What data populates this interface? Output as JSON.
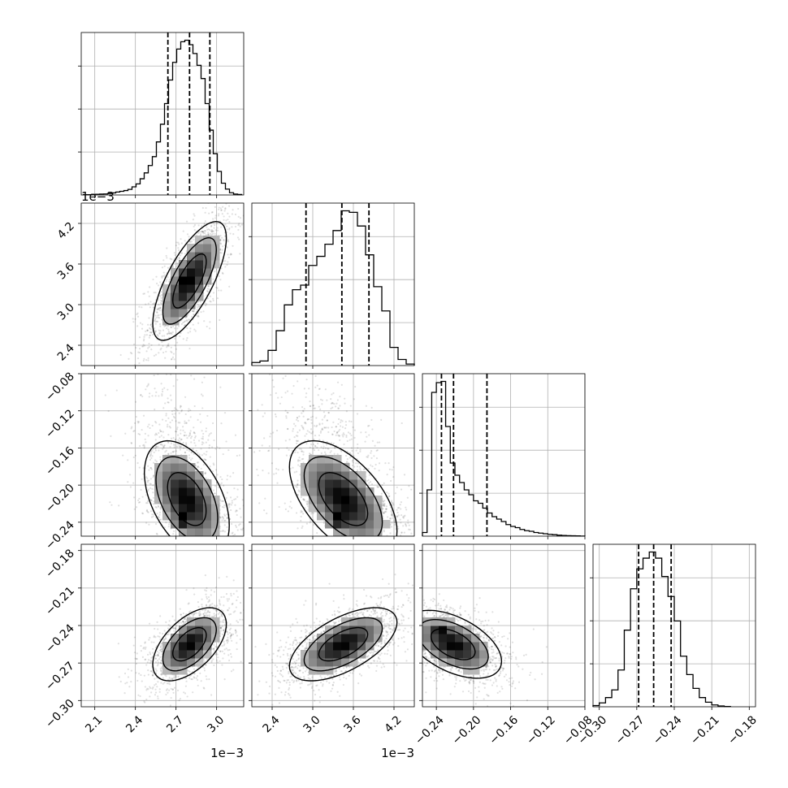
{
  "chart_data": {
    "type": "corner",
    "variables": [
      {
        "range": [
          2.0,
          3.2
        ],
        "ticks": [
          2.1,
          2.4,
          2.7,
          3.0
        ],
        "tick_labels": [
          "2.1",
          "2.4",
          "2.7",
          "3.0"
        ],
        "offset_label": "1e−3"
      },
      {
        "range": [
          2.1,
          4.5
        ],
        "ticks": [
          2.4,
          3.0,
          3.6,
          4.2
        ],
        "tick_labels": [
          "2.4",
          "3.0",
          "3.6",
          "4.2"
        ],
        "offset_label": "1e−3"
      },
      {
        "range": [
          -0.255,
          -0.08
        ],
        "ticks": [
          -0.24,
          -0.2,
          -0.16,
          -0.12,
          -0.08
        ],
        "tick_labels": [
          "−0.24",
          "−0.20",
          "−0.16",
          "−0.12",
          "−0.08"
        ],
        "offset_label": ""
      },
      {
        "range": [
          -0.305,
          -0.175
        ],
        "ticks": [
          -0.3,
          -0.27,
          -0.24,
          -0.21,
          -0.18
        ],
        "tick_labels": [
          "−0.30",
          "−0.27",
          "−0.24",
          "−0.21",
          "−0.18"
        ],
        "offset_label": ""
      }
    ],
    "histograms": [
      {
        "bins": [
          2.03,
          2.06,
          2.09,
          2.12,
          2.15,
          2.18,
          2.21,
          2.24,
          2.27,
          2.3,
          2.33,
          2.36,
          2.39,
          2.42,
          2.45,
          2.48,
          2.51,
          2.54,
          2.57,
          2.6,
          2.63,
          2.66,
          2.69,
          2.72,
          2.75,
          2.78,
          2.81,
          2.84,
          2.87,
          2.9,
          2.93,
          2.96,
          2.99,
          3.02,
          3.05,
          3.08,
          3.11,
          3.14,
          3.17
        ],
        "counts": [
          2,
          2,
          4,
          5,
          6,
          7,
          10,
          14,
          20,
          25,
          30,
          38,
          55,
          75,
          110,
          150,
          200,
          260,
          360,
          480,
          620,
          780,
          900,
          990,
          1040,
          1050,
          1020,
          960,
          880,
          790,
          620,
          440,
          280,
          160,
          80,
          40,
          15,
          6,
          3
        ],
        "quantiles": [
          2.64,
          2.8,
          2.95
        ]
      },
      {
        "bins": [
          2.16,
          2.28,
          2.4,
          2.52,
          2.64,
          2.76,
          2.88,
          3.0,
          3.12,
          3.24,
          3.36,
          3.48,
          3.6,
          3.72,
          3.84,
          3.96,
          4.08,
          4.2,
          4.32,
          4.44
        ],
        "counts": [
          20,
          30,
          100,
          230,
          400,
          500,
          530,
          660,
          720,
          800,
          890,
          1020,
          1010,
          920,
          730,
          520,
          360,
          120,
          40,
          10
        ],
        "quantiles": [
          2.9,
          3.43,
          3.83
        ]
      },
      {
        "bins": [
          -0.2525,
          -0.2475,
          -0.2425,
          -0.2375,
          -0.2325,
          -0.2275,
          -0.2225,
          -0.2175,
          -0.2125,
          -0.2075,
          -0.2025,
          -0.1975,
          -0.1925,
          -0.1875,
          -0.1825,
          -0.1775,
          -0.1725,
          -0.1675,
          -0.1625,
          -0.1575,
          -0.1525,
          -0.1475,
          -0.1425,
          -0.1375,
          -0.1325,
          -0.1275,
          -0.1225,
          -0.1175,
          -0.1125,
          -0.1075,
          -0.1025,
          -0.0975,
          -0.0925,
          -0.0875,
          -0.0825
        ],
        "counts": [
          30,
          380,
          1180,
          1260,
          1270,
          900,
          600,
          500,
          440,
          380,
          340,
          290,
          270,
          230,
          190,
          160,
          140,
          120,
          95,
          80,
          70,
          55,
          45,
          40,
          30,
          25,
          20,
          15,
          12,
          8,
          6,
          4,
          3,
          2,
          1
        ],
        "quantiles": [
          -0.2345,
          -0.2215,
          -0.1855
        ]
      },
      {
        "bins": [
          -0.3025,
          -0.2975,
          -0.2925,
          -0.2875,
          -0.2825,
          -0.2775,
          -0.2725,
          -0.2675,
          -0.2625,
          -0.2575,
          -0.2525,
          -0.2475,
          -0.2425,
          -0.2375,
          -0.2325,
          -0.2275,
          -0.2225,
          -0.2175,
          -0.2125,
          -0.2075,
          -0.2025,
          -0.1975
        ],
        "counts": [
          8,
          25,
          60,
          110,
          240,
          500,
          770,
          900,
          970,
          1010,
          970,
          850,
          720,
          560,
          330,
          210,
          120,
          60,
          30,
          12,
          5,
          2
        ],
        "quantiles": [
          -0.2685,
          -0.2565,
          -0.2425
        ]
      }
    ],
    "pairs": [
      {
        "x": 0,
        "y": 1,
        "mean": [
          2.8,
          3.35
        ],
        "sd": [
          0.13,
          0.42
        ],
        "rho": 0.72,
        "blobs": [
          [
            2.75,
            3.35,
            2.0
          ],
          [
            2.85,
            3.45,
            1.5
          ]
        ]
      },
      {
        "x": 0,
        "y": 2,
        "mean": [
          2.78,
          -0.215
        ],
        "sd": [
          0.15,
          0.03
        ],
        "rho": -0.45,
        "blobs": [
          [
            2.75,
            -0.235,
            2.0
          ],
          [
            2.82,
            -0.235,
            1.3
          ]
        ]
      },
      {
        "x": 1,
        "y": 2,
        "mean": [
          3.45,
          -0.215
        ],
        "sd": [
          0.38,
          0.03
        ],
        "rho": -0.55,
        "blobs": [
          [
            3.4,
            -0.235,
            2.0
          ],
          [
            3.65,
            -0.232,
            1.2
          ]
        ]
      },
      {
        "x": 0,
        "y": 3,
        "mean": [
          2.8,
          -0.255
        ],
        "sd": [
          0.13,
          0.014
        ],
        "rho": 0.55,
        "blobs": [
          [
            2.78,
            -0.254,
            2.0
          ]
        ]
      },
      {
        "x": 1,
        "y": 3,
        "mean": [
          3.45,
          -0.255
        ],
        "sd": [
          0.38,
          0.014
        ],
        "rho": 0.6,
        "blobs": [
          [
            3.35,
            -0.253,
            1.8
          ]
        ]
      },
      {
        "x": 2,
        "y": 3,
        "mean": [
          -0.222,
          -0.255
        ],
        "sd": [
          0.025,
          0.013
        ],
        "rho": -0.5,
        "blobs": [
          [
            -0.236,
            -0.245,
            2.0
          ],
          [
            -0.23,
            -0.252,
            1.5
          ]
        ]
      }
    ]
  }
}
